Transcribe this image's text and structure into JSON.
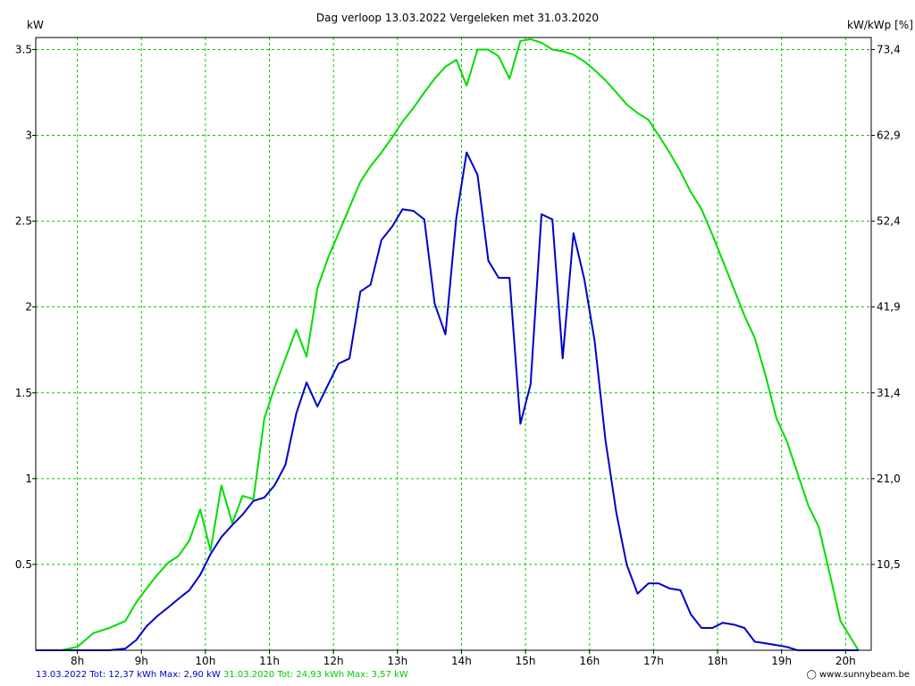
{
  "chart_data": {
    "type": "line",
    "title": "Dag  verloop 13.03.2022   Vergeleken met 31.03.2020",
    "ylabel_left": "kW",
    "ylabel_right": "kW/kWp [%]",
    "ylim": [
      0,
      3.57
    ],
    "xlim": [
      7.35,
      20.4
    ],
    "x_ticks": [
      {
        "value": 8,
        "label": "8h"
      },
      {
        "value": 9,
        "label": "9h"
      },
      {
        "value": 10,
        "label": "10h"
      },
      {
        "value": 11,
        "label": "11h"
      },
      {
        "value": 12,
        "label": "12h"
      },
      {
        "value": 13,
        "label": "13h"
      },
      {
        "value": 14,
        "label": "14h"
      },
      {
        "value": 15,
        "label": "15h"
      },
      {
        "value": 16,
        "label": "16h"
      },
      {
        "value": 17,
        "label": "17h"
      },
      {
        "value": 18,
        "label": "18h"
      },
      {
        "value": 19,
        "label": "19h"
      },
      {
        "value": 20,
        "label": "20h"
      }
    ],
    "y_ticks_left": [
      {
        "value": 0.5,
        "label": "0.5"
      },
      {
        "value": 1,
        "label": "1"
      },
      {
        "value": 1.5,
        "label": "1.5"
      },
      {
        "value": 2,
        "label": "2"
      },
      {
        "value": 2.5,
        "label": "2.5"
      },
      {
        "value": 3,
        "label": "3"
      },
      {
        "value": 3.5,
        "label": "3.5"
      }
    ],
    "y_ticks_right": [
      {
        "value": 0.5,
        "label": "10,5"
      },
      {
        "value": 1,
        "label": "21,0"
      },
      {
        "value": 1.5,
        "label": "31,4"
      },
      {
        "value": 2,
        "label": "41,9"
      },
      {
        "value": 2.5,
        "label": "52,4"
      },
      {
        "value": 3,
        "label": "62,9"
      },
      {
        "value": 3.5,
        "label": "73,4"
      }
    ],
    "grid": true,
    "series": [
      {
        "name": "13.03.2022 Tot: 12,37 kWh Max: 2,90 kW",
        "color": "#0000cc",
        "x": [
          7.35,
          8.5,
          8.75,
          8.92,
          9.08,
          9.25,
          9.42,
          9.58,
          9.75,
          9.92,
          10.08,
          10.25,
          10.42,
          10.58,
          10.75,
          10.92,
          11.08,
          11.25,
          11.42,
          11.58,
          11.75,
          11.92,
          12.08,
          12.25,
          12.42,
          12.58,
          12.75,
          12.92,
          13.08,
          13.25,
          13.42,
          13.58,
          13.75,
          13.92,
          14.08,
          14.25,
          14.42,
          14.58,
          14.75,
          14.92,
          15.08,
          15.25,
          15.42,
          15.58,
          15.75,
          15.92,
          16.08,
          16.25,
          16.42,
          16.58,
          16.75,
          16.92,
          17.08,
          17.25,
          17.42,
          17.58,
          17.75,
          17.92,
          18.08,
          18.25,
          18.42,
          18.58,
          18.75,
          18.92,
          19.08,
          19.25,
          19.42,
          20.2
        ],
        "values": [
          0,
          0,
          0.01,
          0.06,
          0.14,
          0.2,
          0.25,
          0.3,
          0.35,
          0.44,
          0.56,
          0.66,
          0.73,
          0.79,
          0.87,
          0.89,
          0.96,
          1.08,
          1.38,
          1.56,
          1.42,
          1.55,
          1.67,
          1.7,
          2.09,
          2.13,
          2.39,
          2.47,
          2.57,
          2.56,
          2.51,
          2.02,
          1.84,
          2.52,
          2.9,
          2.77,
          2.27,
          2.17,
          2.17,
          1.32,
          1.55,
          2.54,
          2.51,
          1.7,
          2.43,
          2.16,
          1.8,
          1.22,
          0.8,
          0.5,
          0.33,
          0.39,
          0.39,
          0.36,
          0.35,
          0.21,
          0.13,
          0.13,
          0.16,
          0.15,
          0.13,
          0.05,
          0.04,
          0.03,
          0.02,
          0,
          0,
          0
        ]
      },
      {
        "name": "31.03.2020 Tot: 24,93 kWh Max: 3,57 kW",
        "color": "#00dd00",
        "x": [
          7.35,
          7.75,
          8.0,
          8.25,
          8.5,
          8.75,
          8.92,
          9.08,
          9.25,
          9.42,
          9.58,
          9.75,
          9.92,
          10.08,
          10.25,
          10.42,
          10.58,
          10.75,
          10.92,
          11.08,
          11.25,
          11.42,
          11.58,
          11.75,
          11.92,
          12.08,
          12.25,
          12.42,
          12.58,
          12.75,
          12.92,
          13.08,
          13.25,
          13.42,
          13.58,
          13.75,
          13.92,
          14.08,
          14.25,
          14.42,
          14.58,
          14.75,
          14.92,
          15.08,
          15.25,
          15.42,
          15.58,
          15.75,
          15.92,
          16.08,
          16.25,
          16.42,
          16.58,
          16.75,
          16.92,
          17.08,
          17.25,
          17.42,
          17.58,
          17.75,
          17.92,
          18.08,
          18.25,
          18.42,
          18.58,
          18.75,
          18.92,
          19.08,
          19.25,
          19.42,
          19.58,
          19.75,
          19.92,
          20.2
        ],
        "values": [
          0,
          0,
          0.02,
          0.1,
          0.13,
          0.17,
          0.28,
          0.36,
          0.44,
          0.51,
          0.55,
          0.64,
          0.82,
          0.58,
          0.96,
          0.74,
          0.9,
          0.88,
          1.35,
          1.53,
          1.7,
          1.87,
          1.71,
          2.11,
          2.29,
          2.43,
          2.58,
          2.73,
          2.82,
          2.9,
          2.99,
          3.08,
          3.16,
          3.25,
          3.33,
          3.4,
          3.44,
          3.29,
          3.5,
          3.5,
          3.46,
          3.33,
          3.55,
          3.56,
          3.54,
          3.5,
          3.49,
          3.47,
          3.43,
          3.38,
          3.32,
          3.25,
          3.18,
          3.13,
          3.09,
          3.0,
          2.9,
          2.79,
          2.67,
          2.57,
          2.42,
          2.27,
          2.11,
          1.95,
          1.82,
          1.6,
          1.35,
          1.22,
          1.03,
          0.84,
          0.72,
          0.45,
          0.17,
          0
        ]
      }
    ]
  },
  "footer": {
    "series1_text": "13.03.2022 Tot: 12,37 kWh Max: 2,90 kW",
    "series2_text": "31.03.2020 Tot: 24,93 kWh Max: 3,57 kW",
    "credit": "www.sunnybeam.be"
  },
  "colors": {
    "grid": "#00cc00",
    "series1": "#0000cc",
    "series2": "#00dd00",
    "plot_border": "#000000"
  }
}
